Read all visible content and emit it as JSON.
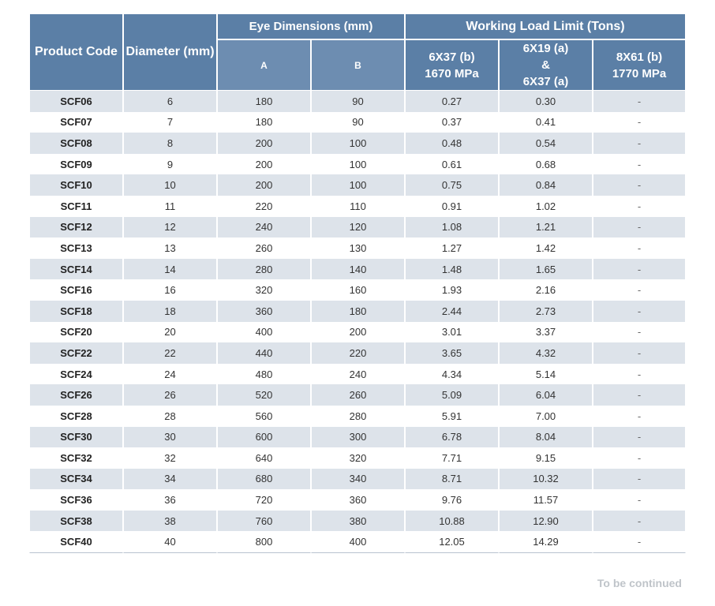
{
  "header": {
    "product_code": "Product Code",
    "diameter": "Diameter (mm)",
    "eye_dimensions": "Eye Dimensions (mm)",
    "eye_a": "A",
    "eye_b": "B",
    "wll": "Working Load Limit (Tons)",
    "col1_line1": "6X37  (b)",
    "col1_line2": "1670 MPa",
    "col2_line1": "6X19  (a)",
    "col2_line2": "&",
    "col2_line3": "6X37  (a)",
    "col3_line1": "8X61 (b)",
    "col3_line2": "1770 MPa"
  },
  "rows": [
    [
      "SCF06",
      "6",
      "180",
      "90",
      "0.27",
      "0.30",
      "-"
    ],
    [
      "SCF07",
      "7",
      "180",
      "90",
      "0.37",
      "0.41",
      "-"
    ],
    [
      "SCF08",
      "8",
      "200",
      "100",
      "0.48",
      "0.54",
      "-"
    ],
    [
      "SCF09",
      "9",
      "200",
      "100",
      "0.61",
      "0.68",
      "-"
    ],
    [
      "SCF10",
      "10",
      "200",
      "100",
      "0.75",
      "0.84",
      "-"
    ],
    [
      "SCF11",
      "11",
      "220",
      "110",
      "0.91",
      "1.02",
      "-"
    ],
    [
      "SCF12",
      "12",
      "240",
      "120",
      "1.08",
      "1.21",
      "-"
    ],
    [
      "SCF13",
      "13",
      "260",
      "130",
      "1.27",
      "1.42",
      "-"
    ],
    [
      "SCF14",
      "14",
      "280",
      "140",
      "1.48",
      "1.65",
      "-"
    ],
    [
      "SCF16",
      "16",
      "320",
      "160",
      "1.93",
      "2.16",
      "-"
    ],
    [
      "SCF18",
      "18",
      "360",
      "180",
      "2.44",
      "2.73",
      "-"
    ],
    [
      "SCF20",
      "20",
      "400",
      "200",
      "3.01",
      "3.37",
      "-"
    ],
    [
      "SCF22",
      "22",
      "440",
      "220",
      "3.65",
      "4.32",
      "-"
    ],
    [
      "SCF24",
      "24",
      "480",
      "240",
      "4.34",
      "5.14",
      "-"
    ],
    [
      "SCF26",
      "26",
      "520",
      "260",
      "5.09",
      "6.04",
      "-"
    ],
    [
      "SCF28",
      "28",
      "560",
      "280",
      "5.91",
      "7.00",
      "-"
    ],
    [
      "SCF30",
      "30",
      "600",
      "300",
      "6.78",
      "8.04",
      "-"
    ],
    [
      "SCF32",
      "32",
      "640",
      "320",
      "7.71",
      "9.15",
      "-"
    ],
    [
      "SCF34",
      "34",
      "680",
      "340",
      "8.71",
      "10.32",
      "-"
    ],
    [
      "SCF36",
      "36",
      "720",
      "360",
      "9.76",
      "11.57",
      "-"
    ],
    [
      "SCF38",
      "38",
      "760",
      "380",
      "10.88",
      "12.90",
      "-"
    ],
    [
      "SCF40",
      "40",
      "800",
      "400",
      "12.05",
      "14.29",
      "-"
    ]
  ],
  "footer": "To be continued"
}
